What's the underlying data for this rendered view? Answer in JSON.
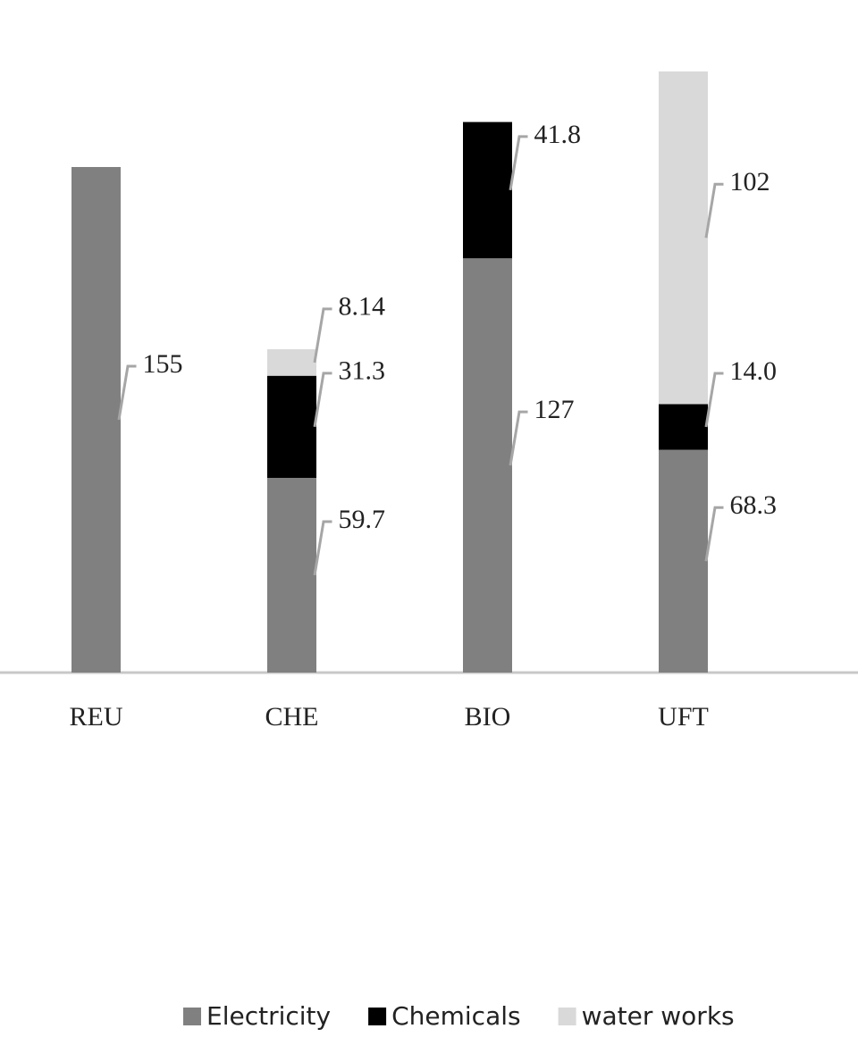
{
  "chart_data": {
    "type": "stacked_bar",
    "categories": [
      "REU",
      "CHE",
      "BIO",
      "UFT"
    ],
    "series": [
      {
        "name": "Electricity",
        "color": "#808080",
        "values": [
          155,
          59.7,
          127,
          68.3
        ]
      },
      {
        "name": "Chemicals",
        "color": "#000000",
        "values": [
          null,
          31.3,
          41.8,
          14.0
        ],
        "value_labels": [
          null,
          "31.3",
          "41.8",
          "14.0"
        ]
      },
      {
        "name": "water works",
        "color": "#d9d9d9",
        "values": [
          null,
          8.14,
          null,
          102
        ]
      }
    ],
    "legend": "bottom"
  }
}
